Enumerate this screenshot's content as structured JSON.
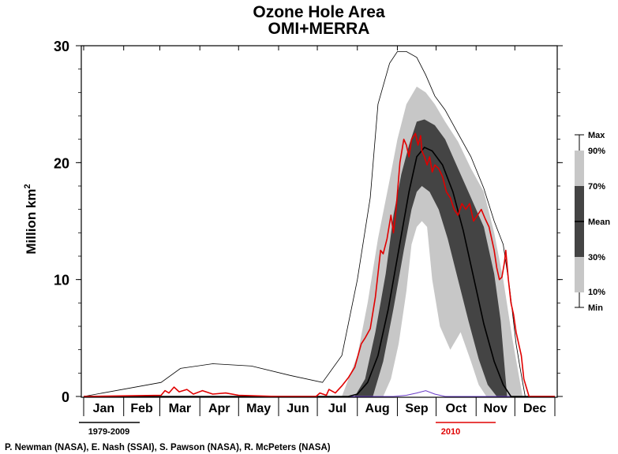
{
  "chart_data": {
    "type": "line",
    "title": "Ozone Hole Area",
    "subtitle": "OMI+MERRA",
    "ylabel": "Million km",
    "ylabel_superscript": "2",
    "ylim": [
      0,
      30
    ],
    "yticks": [
      "0",
      "10",
      "20",
      "30"
    ],
    "xlim": [
      0,
      365
    ],
    "months": [
      "Jan",
      "Feb",
      "Mar",
      "Apr",
      "May",
      "Jun",
      "Jul",
      "Aug",
      "Sep",
      "Oct",
      "Nov",
      "Dec"
    ],
    "grid": false,
    "legend": {
      "placement": "right",
      "labels": {
        "max": "Max",
        "p90": "90%",
        "p70": "70%",
        "mean": "Mean",
        "p30": "30%",
        "p10": "10%",
        "min": "Min"
      }
    },
    "climatology_label": "1979-2009",
    "year_label": "2010",
    "series": [
      {
        "name": "Max",
        "x": [
          0,
          60,
          75,
          100,
          130,
          160,
          185,
          200,
          212,
          222,
          228,
          237,
          243,
          250,
          258,
          265,
          272,
          280,
          290,
          300,
          310,
          318,
          325,
          330,
          335,
          338,
          342,
          365
        ],
        "y": [
          0,
          1.2,
          2.4,
          2.8,
          2.6,
          1.8,
          1.2,
          3.5,
          10,
          17,
          25,
          28.5,
          29.5,
          29.5,
          29,
          27.5,
          25.7,
          24.5,
          22.5,
          20.5,
          17.8,
          15,
          13,
          9.2,
          4.5,
          2.5,
          0,
          0
        ]
      },
      {
        "name": "90%",
        "x": [
          0,
          200,
          212,
          220,
          228,
          237,
          243,
          250,
          258,
          265,
          272,
          280,
          290,
          300,
          310,
          318,
          325,
          332,
          340,
          365
        ],
        "y": [
          0,
          0,
          3.5,
          8,
          13.5,
          18.5,
          22,
          25,
          26.5,
          26,
          25,
          23.5,
          21.8,
          19.5,
          17.5,
          14,
          10,
          5,
          0,
          0
        ]
      },
      {
        "name": "70%",
        "x": [
          0,
          210,
          218,
          226,
          234,
          240,
          246,
          252,
          258,
          264,
          272,
          280,
          290,
          300,
          310,
          318,
          323,
          328,
          365
        ],
        "y": [
          0,
          0,
          1.5,
          5.5,
          10.5,
          15.5,
          19,
          21.5,
          23.5,
          23.7,
          23.2,
          22,
          19.5,
          17,
          14.5,
          10.5,
          6.5,
          0,
          0
        ]
      },
      {
        "name": "Mean",
        "x": [
          0,
          205,
          212,
          220,
          228,
          236,
          244,
          252,
          258,
          264,
          270,
          278,
          286,
          294,
          302,
          310,
          318,
          325,
          331,
          365
        ],
        "y": [
          0,
          0,
          0.2,
          1.2,
          3.5,
          7.5,
          12.5,
          17.5,
          20.5,
          21.3,
          21.0,
          19.8,
          17.5,
          14.2,
          10.2,
          6.2,
          3.0,
          1.0,
          0,
          0
        ]
      },
      {
        "name": "30%",
        "x": [
          0,
          224,
          232,
          240,
          248,
          254,
          258,
          262,
          268,
          275,
          282,
          290,
          298,
          306,
          313,
          320,
          365
        ],
        "y": [
          0,
          0,
          3,
          7.5,
          12.5,
          16,
          17.5,
          18,
          17.5,
          16,
          13.5,
          10,
          6.5,
          3.2,
          1.0,
          0,
          0
        ]
      },
      {
        "name": "10%",
        "x": [
          0,
          232,
          238,
          244,
          250,
          254,
          258,
          262,
          266,
          270,
          276,
          284,
          292,
          300,
          306,
          312,
          365
        ],
        "y": [
          0,
          0,
          1.5,
          4.5,
          9,
          13,
          14.5,
          15,
          14.5,
          10,
          6,
          4,
          5.5,
          3,
          1,
          0,
          0
        ]
      },
      {
        "name": "Min",
        "x": [
          0,
          240,
          250,
          258,
          265,
          272,
          280,
          365
        ],
        "y": [
          0,
          0,
          0.1,
          0.3,
          0.5,
          0.2,
          0,
          0
        ]
      },
      {
        "name": "2010",
        "x": [
          0,
          60,
          63,
          66,
          70,
          74,
          80,
          85,
          92,
          100,
          110,
          120,
          150,
          180,
          183,
          188,
          190,
          195,
          200,
          205,
          210,
          215,
          218,
          222,
          226,
          228,
          230,
          232,
          235,
          238,
          240,
          242,
          245,
          248,
          250,
          252,
          254,
          257,
          259,
          261,
          262,
          264,
          266,
          268,
          270,
          272,
          275,
          278,
          281,
          284,
          287,
          290,
          293,
          296,
          299,
          302,
          305,
          308,
          311,
          314,
          316,
          318,
          320,
          322,
          324,
          326,
          327,
          329,
          331,
          333,
          335,
          337,
          339,
          341,
          345,
          365
        ],
        "y": [
          0,
          0.1,
          0.5,
          0.3,
          0.8,
          0.4,
          0.6,
          0.2,
          0.5,
          0.2,
          0.3,
          0.1,
          0,
          0,
          0.3,
          0.1,
          0.6,
          0.3,
          0.9,
          1.6,
          2.5,
          4.5,
          5.0,
          5.8,
          8.5,
          10.5,
          12.5,
          12.2,
          13.5,
          15.5,
          14.0,
          16.0,
          20.0,
          22.0,
          21.5,
          20.5,
          22.0,
          22.5,
          21.5,
          22.3,
          21.0,
          20.5,
          19.8,
          20.5,
          19.2,
          19.8,
          19.5,
          18.8,
          17.5,
          17.0,
          16.0,
          15.5,
          16.5,
          16.0,
          16.5,
          15.0,
          15.5,
          16.0,
          15.2,
          14.5,
          13.5,
          12.5,
          11.0,
          10.0,
          10.2,
          11.5,
          12.5,
          10.0,
          8.0,
          7.0,
          5.5,
          4.5,
          3.5,
          1.5,
          0,
          0
        ]
      }
    ]
  },
  "credits": "P. Newman (NASA), E. Nash (SSAI), S. Pawson (NASA), R. McPeters (NASA)",
  "colors": {
    "band_outer": "#c7c7c7",
    "band_inner": "#444444",
    "mean": "#000000",
    "year": "#e00000",
    "min_line": "#6a3cc8"
  }
}
